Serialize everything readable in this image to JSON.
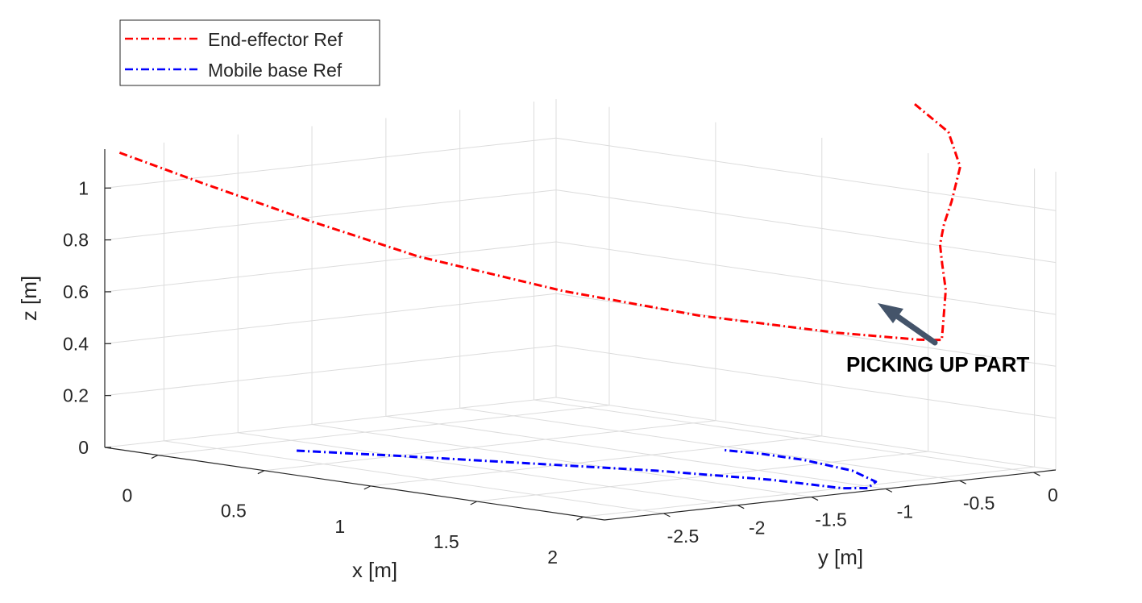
{
  "chart_data": {
    "type": "line3d",
    "title": "",
    "xlabel": "x [m]",
    "ylabel": "y [m]",
    "zlabel": "z [m]",
    "xlim": [
      -0.25,
      2.1
    ],
    "ylim": [
      -2.9,
      0.15
    ],
    "zlim": [
      0,
      1.15
    ],
    "grid": true,
    "x_ticks": [
      0,
      0.5,
      1,
      1.5,
      2
    ],
    "x_tick_labels": [
      "0",
      "0.5",
      "1",
      "1.5",
      "2"
    ],
    "y_ticks": [
      0,
      -0.5,
      -1,
      -1.5,
      -2,
      -2.5
    ],
    "y_tick_labels": [
      "0",
      "-0.5",
      "-1",
      "-1.5",
      "-2",
      "-2.5"
    ],
    "z_ticks": [
      0,
      0.2,
      0.4,
      0.6,
      0.8,
      1
    ],
    "z_tick_labels": [
      "0",
      "0.2",
      "0.4",
      "0.6",
      "0.8",
      "1"
    ],
    "legend_position": "top-left",
    "series": [
      {
        "name": "End-effector Ref",
        "color": "#ff0000",
        "style": "dash-dot",
        "x": [
          -0.25,
          0.0,
          0.3,
          0.6,
          1.0,
          1.4,
          1.8,
          2.05,
          2.1,
          2.06,
          2.0,
          1.9,
          1.82,
          1.79,
          1.77,
          1.72,
          1.63,
          1.5
        ],
        "y": [
          -2.8,
          -2.6,
          -2.3,
          -2.0,
          -1.6,
          -1.25,
          -0.9,
          -0.7,
          -0.62,
          -0.55,
          -0.45,
          -0.33,
          -0.23,
          -0.16,
          -0.08,
          0.05,
          0.1,
          0.05
        ],
        "z": [
          1.13,
          1.03,
          0.9,
          0.78,
          0.67,
          0.6,
          0.56,
          0.55,
          0.55,
          0.63,
          0.72,
          0.8,
          0.86,
          0.93,
          1.01,
          1.13,
          1.25,
          1.35
        ]
      },
      {
        "name": "Mobile base Ref",
        "color": "#0000ff",
        "style": "dash-dot",
        "x": [
          0.2,
          0.5,
          0.9,
          1.3,
          1.7,
          2.0,
          2.05,
          1.95,
          1.7,
          1.4,
          1.2,
          1.05
        ],
        "y": [
          -2.25,
          -2.0,
          -1.7,
          -1.4,
          -1.2,
          -1.15,
          -1.05,
          -0.85,
          -0.65,
          -0.55,
          -0.55,
          -0.6
        ],
        "z": [
          0,
          0,
          0,
          0,
          0,
          0,
          0,
          0,
          0,
          0,
          0,
          0
        ]
      }
    ],
    "annotations": [
      {
        "text": "PICKING UP PART",
        "arrow": true,
        "points_to": "End-effector Ref turning point",
        "x": 2.1,
        "y": -0.62,
        "z": 0.55
      }
    ]
  }
}
